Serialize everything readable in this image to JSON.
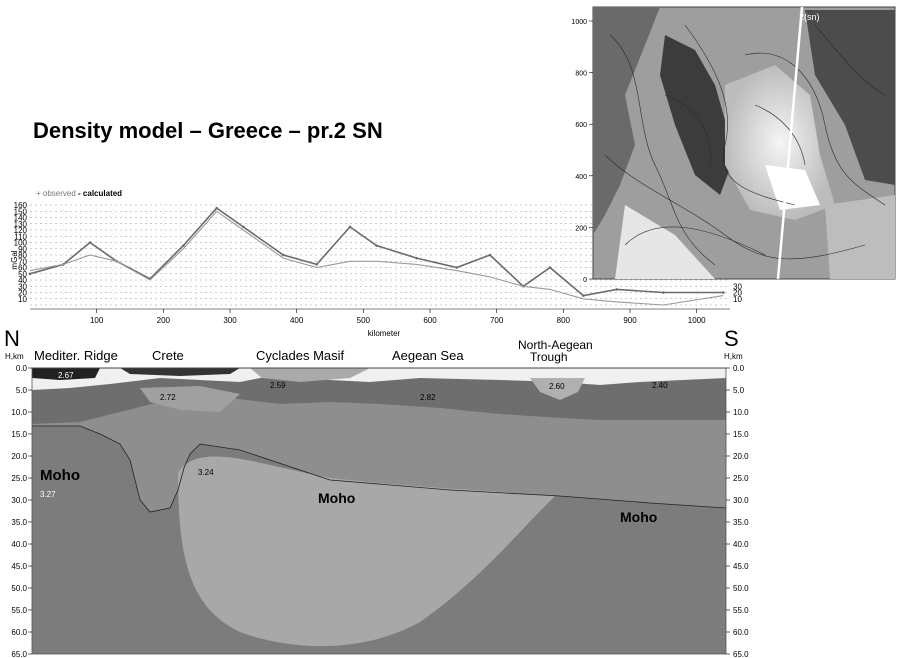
{
  "title": "Density model – Greece – pr.2 SN",
  "gravity_chart": {
    "legend_observed": "+ observed",
    "legend_calculated": "- calculated",
    "ylabel": "mGal",
    "xlabel": "kilometer",
    "left_ticks": [
      "160",
      "150",
      "140",
      "130",
      "120",
      "110",
      "100",
      "90",
      "80",
      "70",
      "60",
      "50",
      "40",
      "30",
      "20",
      "10"
    ],
    "right_ticks": [
      "30",
      "20",
      "10"
    ],
    "x_ticks": [
      "100",
      "200",
      "300",
      "400",
      "500",
      "600",
      "700",
      "800",
      "900",
      "1000"
    ]
  },
  "map": {
    "y_ticks": [
      "1000",
      "800",
      "600",
      "400",
      "200",
      "0"
    ],
    "profile_label": "2(sn)"
  },
  "section": {
    "left_end": "N",
    "right_end": "S",
    "left_unit": "H,km",
    "right_unit": "H,km",
    "regions": [
      "Mediter. Ridge",
      "Crete",
      "Cyclades Masif",
      "Aegean Sea",
      "North-Aegean",
      "Trough"
    ],
    "depth_ticks": [
      "0.0",
      "5.0",
      "10.0",
      "15.0",
      "20.0",
      "25.0",
      "30.0",
      "35.0",
      "40.0",
      "45.0",
      "50.0",
      "55.0",
      "60.0",
      "65.0"
    ],
    "densities": [
      "2.67",
      "2.72",
      "2.59",
      "2.82",
      "2.60",
      "2.40",
      "3.24",
      "3.27"
    ],
    "moho_labels": [
      "Moho",
      "Moho",
      "Moho"
    ]
  },
  "chart_data": {
    "type": "line",
    "x": [
      0,
      50,
      90,
      130,
      180,
      230,
      280,
      320,
      380,
      430,
      480,
      520,
      580,
      640,
      690,
      740,
      780,
      830,
      880,
      950,
      1040
    ],
    "series": [
      {
        "name": "observed",
        "values": [
          50,
          65,
          100,
          70,
          42,
          95,
          155,
          125,
          80,
          65,
          125,
          95,
          75,
          60,
          80,
          30,
          60,
          15,
          25,
          20,
          20
        ]
      },
      {
        "name": "calculated",
        "values": [
          55,
          65,
          80,
          70,
          40,
          90,
          150,
          120,
          75,
          60,
          70,
          70,
          65,
          55,
          45,
          30,
          25,
          10,
          5,
          0,
          15
        ]
      }
    ],
    "xlabel": "kilometer",
    "ylabel": "mGal",
    "ylim": [
      0,
      160
    ],
    "xlim": [
      0,
      1050
    ],
    "grid": true,
    "colors": {
      "observed": "#6a6a6a",
      "calculated": "#9a9a9a"
    }
  }
}
